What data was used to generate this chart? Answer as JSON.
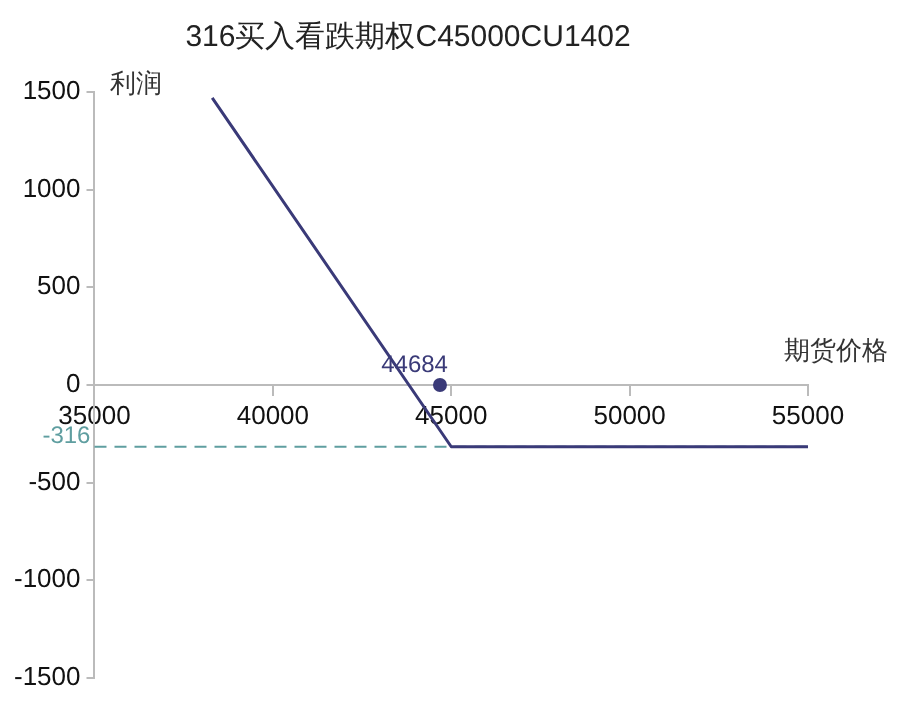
{
  "chart_data": {
    "type": "line",
    "title": "316买入看跌期权C45000CU1402",
    "xlabel": "期货价格",
    "ylabel": "利润",
    "series": [
      {
        "color": "#3a3a78",
        "x": [
          38300,
          45000,
          55000
        ],
        "values": [
          1470,
          -316,
          -316
        ]
      }
    ],
    "xlim": [
      35000,
      55000
    ],
    "xticks": [
      35000,
      40000,
      45000,
      50000,
      55000
    ],
    "ylim": [
      -1500,
      1500
    ],
    "yticks": [
      -1500,
      -1000,
      -500,
      0,
      500,
      1000,
      1500
    ],
    "ref_lines": [
      {
        "axis": "y",
        "value": -316,
        "label": "-316",
        "color": "#5f9ea0",
        "line_style": "dashed"
      }
    ],
    "annotations": [
      {
        "text": "44684",
        "x": 44684,
        "y": 0
      }
    ],
    "grid": false,
    "legend": false,
    "marker": "none",
    "line_style": "solid"
  }
}
